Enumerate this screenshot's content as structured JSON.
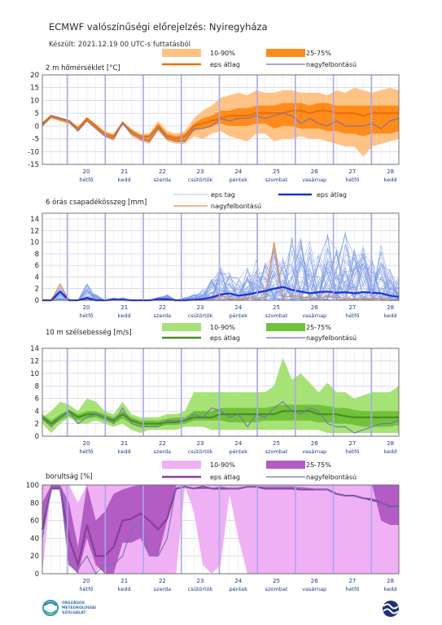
{
  "title": "ECMWF valószínűségi előrejelzés: Nyiregyháza",
  "subtitle": "Készült: 2021.12.19 00 UTC-s futtatásból",
  "days": [
    {
      "num": "20",
      "name": "hétfő"
    },
    {
      "num": "21",
      "name": "kedd"
    },
    {
      "num": "22",
      "name": "szerda"
    },
    {
      "num": "23",
      "name": "csütörtök"
    },
    {
      "num": "24",
      "name": "péntek"
    },
    {
      "num": "25",
      "name": "szombat"
    },
    {
      "num": "26",
      "name": "vasárnap"
    },
    {
      "num": "27",
      "name": "hétfő"
    },
    {
      "num": "28",
      "name": "kedd"
    }
  ],
  "logo": {
    "line1": "ORSZÁGOS",
    "line2": "METEOROLÓGIAI",
    "line3": "SZOLGÁLAT"
  },
  "colors": {
    "temp_outer": "#ffc385",
    "temp_inner": "#ff8c1a",
    "temp_mean": "#e8700a",
    "precip_member": "#7e9ee8",
    "precip_mean": "#1f2fd0",
    "precip_hires": "#f08a3a",
    "wind_outer": "#a6e275",
    "wind_inner": "#71c23a",
    "wind_mean": "#4a8f22",
    "cloud_outer": "#f0b0f4",
    "cloud_inner": "#b35cc4",
    "cloud_mean": "#8a3e9a",
    "hires": "#7272b5",
    "grid": "#c8c8dc",
    "dayline": "#a8a8ee"
  },
  "chart_data": [
    {
      "type": "area",
      "title": "2 m hőmérséklet [°C]",
      "ylim": [
        -15,
        20
      ],
      "yticks": [
        -15,
        -10,
        -5,
        0,
        5,
        10,
        15,
        20
      ],
      "x_unit": "days since 2021-12-19 00 UTC",
      "x": [
        0,
        0.25,
        0.5,
        0.75,
        1,
        1.25,
        1.5,
        1.75,
        2,
        2.25,
        2.5,
        2.75,
        3,
        3.25,
        3.5,
        3.75,
        4,
        4.25,
        4.5,
        4.75,
        5,
        5.25,
        5.5,
        5.75,
        6,
        6.25,
        6.5,
        6.75,
        7,
        7.25,
        7.5,
        7.75,
        8,
        8.25,
        8.5,
        8.75,
        9,
        9.25,
        9.5,
        9.75,
        10
      ],
      "legend": {
        "p10_90": "10-90%",
        "p25_75": "25-75%",
        "mean": "eps átlag",
        "hires": "nagyfelbontású"
      },
      "p10": [
        0,
        3,
        2,
        1,
        -2,
        2,
        -1,
        -4,
        -6,
        1,
        -4,
        -6,
        -7,
        -2,
        -6,
        -7,
        -7,
        -4,
        -5,
        -3,
        -2,
        -4,
        -5,
        -6,
        -3,
        -3,
        -6,
        -5,
        -5,
        -4,
        -5,
        -5,
        -6,
        -7,
        -8,
        -8,
        -12,
        -8,
        -7,
        -6,
        -5
      ],
      "p25": [
        0,
        3,
        2,
        1,
        -2,
        2,
        -1,
        -4,
        -5,
        1,
        -3,
        -5,
        -6,
        -1,
        -5,
        -6,
        -6,
        -2,
        -1,
        0,
        1,
        0,
        0,
        0,
        1,
        1,
        -1,
        0,
        0,
        -1,
        -1,
        -1,
        -2,
        -2,
        -3,
        -3,
        -4,
        -3,
        -3,
        -3,
        -2
      ],
      "mean": [
        1,
        4,
        3,
        2,
        -1,
        3,
        0,
        -3,
        -4,
        1,
        -2,
        -4,
        -4,
        0,
        -4,
        -5,
        -4,
        0,
        1,
        2,
        3,
        4,
        4,
        4,
        5,
        5,
        5,
        5,
        6,
        6,
        5,
        6,
        6,
        5,
        5,
        5,
        4,
        5,
        5,
        5,
        5
      ],
      "p75": [
        1,
        4,
        3,
        2,
        -1,
        3,
        0,
        -3,
        -4,
        2,
        -2,
        -4,
        -4,
        1,
        -3,
        -4,
        -3,
        1,
        3,
        4,
        6,
        6,
        7,
        7,
        8,
        8,
        8,
        9,
        9,
        9,
        8,
        9,
        9,
        8,
        8,
        8,
        8,
        8,
        8,
        8,
        8
      ],
      "p90": [
        1,
        4,
        3,
        2,
        0,
        3,
        1,
        -2,
        -3,
        2,
        -1,
        -3,
        -3,
        2,
        -2,
        -3,
        -2,
        3,
        6,
        8,
        11,
        12,
        13,
        12,
        14,
        13,
        13,
        14,
        14,
        13,
        13,
        13,
        12,
        14,
        13,
        15,
        14,
        13,
        14,
        15,
        14
      ],
      "hires": [
        0,
        4,
        3,
        2,
        -2,
        2,
        -1,
        -4,
        -5,
        1,
        -3,
        -5,
        -6,
        -1,
        -5,
        -6,
        -6,
        -1,
        -1,
        0,
        3,
        2,
        3,
        3,
        4,
        3,
        4,
        5,
        4,
        1,
        3,
        1,
        0,
        2,
        0,
        0,
        0,
        1,
        -1,
        2,
        3
      ]
    },
    {
      "type": "line",
      "title": "6 órás csapadékösszeg [mm]",
      "ylim": [
        0,
        15
      ],
      "yticks": [
        0,
        2,
        4,
        6,
        8,
        10,
        12,
        14
      ],
      "x_unit": "days since 2021-12-19 00 UTC",
      "x": [
        0,
        0.25,
        0.5,
        0.75,
        1,
        1.25,
        1.5,
        1.75,
        2,
        2.25,
        2.5,
        2.75,
        3,
        3.25,
        3.5,
        3.75,
        4,
        4.25,
        4.5,
        4.75,
        5,
        5.25,
        5.5,
        5.75,
        6,
        6.25,
        6.5,
        6.75,
        7,
        7.25,
        7.5,
        7.75,
        8,
        8.25,
        8.5,
        8.75,
        9,
        9.25,
        9.5,
        9.75,
        10
      ],
      "legend": {
        "members": "eps tag",
        "mean": "eps átlag",
        "hires": "nagyfelbontású"
      },
      "mean": [
        0,
        0,
        1.5,
        0,
        0,
        0.4,
        0,
        0,
        0.1,
        0.1,
        0,
        0,
        0,
        0.2,
        0.2,
        0,
        0,
        0.1,
        0.2,
        0.5,
        1,
        1.2,
        0.8,
        1,
        1.3,
        1.6,
        2,
        2.3,
        1.8,
        1.5,
        1.2,
        1.4,
        1.5,
        1.3,
        1.4,
        1.2,
        1.4,
        1.3,
        1.2,
        0.8,
        0.6
      ],
      "hires": [
        0,
        0,
        2.8,
        0,
        0,
        0.2,
        0,
        0,
        0,
        0,
        0,
        0,
        0,
        0,
        0,
        0,
        0,
        0,
        0,
        0,
        0.8,
        0.3,
        0,
        0.5,
        0.3,
        0.5,
        10,
        0.5,
        0.8,
        0.6,
        0.4,
        0.3,
        0.8,
        0.5,
        0.3,
        0.2,
        0.3,
        0.3,
        0.2,
        0,
        0
      ],
      "members_max": [
        0,
        0,
        2.5,
        0,
        0,
        3,
        1,
        0,
        0.5,
        0.5,
        0,
        0,
        0,
        0.5,
        1,
        0,
        0.5,
        1,
        2,
        4,
        6,
        5,
        4,
        6,
        7,
        8,
        10,
        10,
        14,
        12,
        11,
        8,
        12,
        9,
        12,
        9,
        11,
        8,
        10,
        6,
        4
      ]
    },
    {
      "type": "area",
      "title": "10 m szélsebesség [m/s]",
      "ylim": [
        0,
        14
      ],
      "yticks": [
        0,
        2,
        4,
        6,
        8,
        10,
        12,
        14
      ],
      "x_unit": "days since 2021-12-19 00 UTC",
      "x": [
        0,
        0.25,
        0.5,
        0.75,
        1,
        1.25,
        1.5,
        1.75,
        2,
        2.25,
        2.5,
        2.75,
        3,
        3.25,
        3.5,
        3.75,
        4,
        4.25,
        4.5,
        4.75,
        5,
        5.25,
        5.5,
        5.75,
        6,
        6.25,
        6.5,
        6.75,
        7,
        7.25,
        7.5,
        7.75,
        8,
        8.25,
        8.5,
        8.75,
        9,
        9.25,
        9.5,
        9.75,
        10
      ],
      "legend": {
        "p10_90": "10-90%",
        "p25_75": "25-75%",
        "mean": "eps átlag",
        "hires": "nagyfelbontású"
      },
      "p10": [
        2,
        0.5,
        2,
        3,
        2,
        2,
        2.5,
        2,
        1.5,
        2,
        1,
        0.5,
        1,
        1,
        1,
        1,
        1.5,
        1.5,
        1.5,
        1,
        1,
        1,
        1,
        1,
        1,
        1,
        1,
        1,
        1,
        1,
        1,
        1,
        0.5,
        0.5,
        0.5,
        0.5,
        0.5,
        0.5,
        0.5,
        0.5,
        0.5
      ],
      "p25": [
        2.5,
        1.5,
        2.5,
        3.2,
        2.5,
        2.8,
        3,
        2.5,
        2,
        2.8,
        2,
        1.5,
        1.5,
        1.5,
        1.8,
        1.8,
        2,
        2.5,
        2.5,
        2.5,
        2.5,
        2.2,
        2.2,
        2.2,
        2.2,
        2.5,
        2.5,
        2.5,
        2.5,
        2.5,
        2.5,
        2.2,
        2.2,
        2,
        2,
        1.8,
        1.5,
        1.5,
        1.5,
        1.5,
        1.8
      ],
      "mean": [
        3,
        2,
        3,
        4,
        3,
        3.5,
        3.5,
        3,
        2.5,
        3.5,
        2.5,
        2,
        2,
        2,
        2.2,
        2.2,
        2.5,
        3,
        3,
        3,
        3.5,
        3.5,
        3.5,
        3.5,
        3.5,
        3.5,
        3.5,
        4,
        4,
        4,
        4,
        3.5,
        3.5,
        3.5,
        3.2,
        3,
        3,
        3,
        3,
        3,
        3
      ],
      "p75": [
        3.5,
        2.5,
        3.5,
        4.2,
        3.5,
        4,
        4,
        3.5,
        3,
        4,
        3,
        2.5,
        2.5,
        2.5,
        2.8,
        3,
        3,
        4,
        4,
        4,
        4.5,
        4.5,
        4.5,
        4.5,
        4.5,
        4.5,
        4.8,
        5,
        5,
        5,
        5,
        5,
        4.8,
        4.5,
        4.5,
        4.2,
        4,
        4,
        4,
        4,
        4
      ],
      "p90": [
        3,
        4,
        5.5,
        5,
        4,
        6,
        5.5,
        4,
        3.5,
        5.5,
        3.5,
        3,
        3,
        3,
        3.5,
        3.5,
        4,
        7,
        7,
        7,
        7,
        7,
        7,
        7,
        7,
        7,
        8,
        12.5,
        9,
        10,
        8.5,
        7,
        8.5,
        7,
        7,
        6,
        6.5,
        7,
        7,
        7,
        8
      ],
      "hires": [
        3,
        1.5,
        3,
        4,
        2,
        3,
        3.5,
        3,
        2,
        4.5,
        2,
        1.5,
        1.5,
        1.5,
        2.5,
        2.5,
        2.5,
        3.5,
        3,
        4.5,
        4,
        3,
        3.5,
        1.5,
        3.5,
        3,
        4.5,
        5.5,
        4,
        3.5,
        4.5,
        4,
        2,
        1.5,
        1.5,
        0.5,
        1,
        1.5,
        2,
        2,
        2.5
      ]
    },
    {
      "type": "area",
      "title": "borultság [%]",
      "ylim": [
        0,
        100
      ],
      "yticks": [
        0,
        20,
        40,
        60,
        80,
        100
      ],
      "x_unit": "days since 2021-12-19 00 UTC",
      "x": [
        0,
        0.25,
        0.5,
        0.75,
        1,
        1.25,
        1.5,
        1.75,
        2,
        2.25,
        2.5,
        2.75,
        3,
        3.25,
        3.5,
        3.75,
        4,
        4.25,
        4.5,
        4.75,
        5,
        5.25,
        5.5,
        5.75,
        6,
        6.25,
        6.5,
        6.75,
        7,
        7.25,
        7.5,
        7.75,
        8,
        8.25,
        8.5,
        8.75,
        9,
        9.25,
        9.5,
        9.75,
        10
      ],
      "legend": {
        "p10_90": "10-90%",
        "p25_75": "25-75%",
        "mean": "eps átlag",
        "hires": "nagyfelbontású"
      },
      "p10": [
        0,
        100,
        100,
        20,
        0,
        0,
        0,
        20,
        0,
        0,
        0,
        0,
        0,
        0,
        0,
        0,
        98,
        70,
        10,
        0,
        10,
        90,
        40,
        0,
        0,
        0,
        0,
        0,
        0,
        0,
        0,
        0,
        0,
        0,
        0,
        0,
        0,
        0,
        0,
        0,
        0
      ],
      "p25": [
        50,
        95,
        95,
        10,
        0,
        40,
        10,
        0,
        0,
        35,
        35,
        40,
        20,
        20,
        60,
        100,
        100,
        100,
        100,
        100,
        100,
        100,
        100,
        100,
        100,
        100,
        100,
        100,
        100,
        100,
        100,
        100,
        100,
        100,
        100,
        100,
        100,
        100,
        60,
        55,
        55
      ],
      "mean": [
        50,
        96,
        96,
        40,
        10,
        55,
        20,
        20,
        30,
        60,
        62,
        68,
        60,
        50,
        62,
        96,
        98,
        96,
        98,
        96,
        96,
        96,
        96,
        98,
        98,
        96,
        96,
        96,
        96,
        95,
        95,
        95,
        95,
        90,
        88,
        88,
        85,
        84,
        80,
        76,
        76
      ],
      "p75": [
        80,
        100,
        100,
        80,
        30,
        100,
        60,
        70,
        90,
        95,
        98,
        100,
        100,
        100,
        100,
        100,
        100,
        100,
        100,
        100,
        100,
        100,
        100,
        100,
        100,
        100,
        100,
        100,
        100,
        100,
        100,
        100,
        100,
        100,
        100,
        100,
        100,
        100,
        100,
        100,
        100
      ],
      "p90": [
        100,
        100,
        100,
        100,
        80,
        100,
        100,
        100,
        100,
        100,
        100,
        100,
        100,
        100,
        100,
        100,
        100,
        100,
        100,
        100,
        100,
        100,
        100,
        100,
        100,
        100,
        100,
        100,
        100,
        100,
        100,
        100,
        100,
        100,
        100,
        100,
        100,
        100,
        100,
        100,
        100
      ],
      "hires": [
        40,
        98,
        98,
        10,
        5,
        20,
        0,
        10,
        10,
        20,
        50,
        60,
        20,
        20,
        40,
        97,
        98,
        96,
        96,
        96,
        98,
        96,
        96,
        98,
        98,
        98,
        98,
        98,
        98,
        97,
        96,
        95,
        95,
        90,
        88,
        88,
        85,
        82,
        80,
        76,
        76
      ]
    }
  ]
}
